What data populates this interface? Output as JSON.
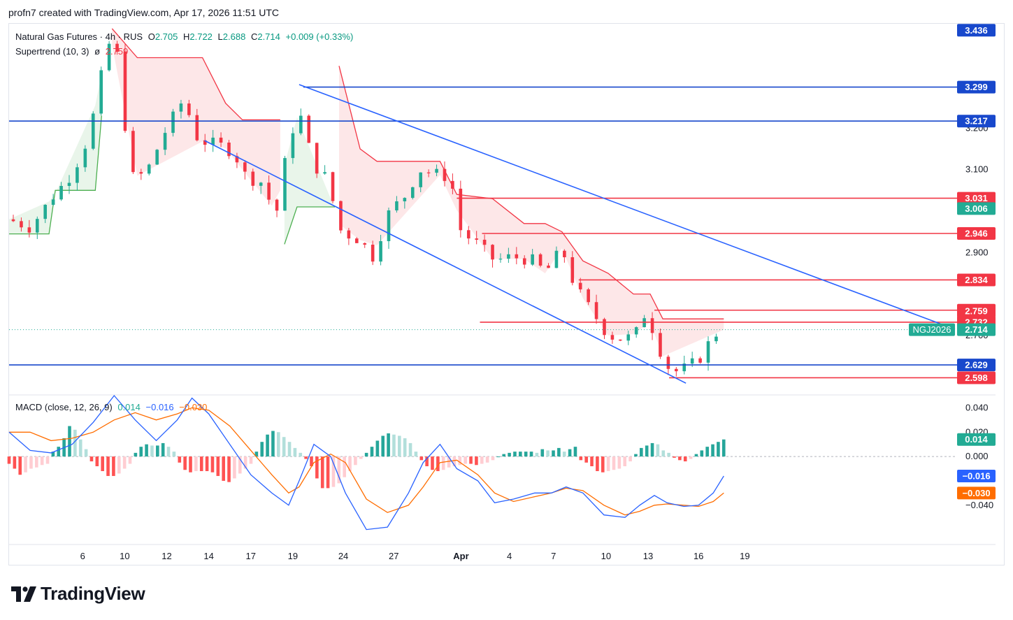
{
  "header": {
    "attribution": "profn7 created with TradingView.com, Apr 17, 2026 11:51 UTC"
  },
  "legend": {
    "symbol": "Natural Gas Futures · 4h · RUS",
    "o_label": "O",
    "o_value": "2.705",
    "h_label": "H",
    "h_value": "2.722",
    "l_label": "L",
    "l_value": "2.688",
    "c_label": "C",
    "c_value": "2.714",
    "change": "+0.009 (+0.33%)",
    "supertrend_label": "Supertrend (10, 3)",
    "supertrend_symbol": "ø",
    "supertrend_value": "2.759",
    "macd_label": "MACD (close, 12, 26, 9)",
    "macd_hist": "0.014",
    "macd_line": "−0.016",
    "macd_signal": "−0.030"
  },
  "logo": {
    "text": "TradingView"
  },
  "chart_data": [
    {
      "type": "candlestick",
      "timeframe": "4h",
      "ylim": [
        2.56,
        3.45
      ],
      "price_ticks": [
        "3.200",
        "3.100",
        "2.900",
        "2.700"
      ],
      "x_ticks": [
        "6",
        "10",
        "12",
        "14",
        "17",
        "19",
        "24",
        "27",
        "Apr",
        "4",
        "7",
        "10",
        "13",
        "16",
        "19"
      ],
      "x_range": [
        -3.5,
        41.5
      ],
      "x_tick_positions": [
        0,
        2,
        4,
        6,
        8,
        10,
        12.4,
        14.8,
        18,
        20.3,
        22.4,
        24.9,
        26.9,
        29.3,
        31.5
      ],
      "horizontal_levels": [
        {
          "value": 3.299,
          "label": "3.299",
          "color": "#1848cc",
          "from_x": 10.5
        },
        {
          "value": 3.217,
          "label": "3.217",
          "color": "#1848cc",
          "from_x": -3.5
        },
        {
          "value": 2.629,
          "label": "2.629",
          "color": "#1848cc",
          "from_x": -3.5
        },
        {
          "value": 3.031,
          "label": "3.031",
          "color": "#f23645",
          "from_x": 17.8
        },
        {
          "value": 2.946,
          "label": "2.946",
          "color": "#f23645",
          "from_x": 19
        },
        {
          "value": 2.834,
          "label": "2.834",
          "color": "#f23645",
          "from_x": 23.6
        },
        {
          "value": 2.761,
          "label": "2.761",
          "color": "#f23645",
          "from_x": 27.2
        },
        {
          "value": 2.732,
          "label": "2.732",
          "color": "#f23645",
          "from_x": 18.9
        },
        {
          "value": 2.598,
          "label": "2.598",
          "color": "#f23645",
          "from_x": 27.9
        }
      ],
      "axis_badges": [
        {
          "value": 3.436,
          "label": "3.436",
          "color": "#1848cc"
        },
        {
          "value": 3.006,
          "label": "3.006",
          "color": "#22ab94"
        },
        {
          "value": 2.759,
          "label": "2.759",
          "color": "#f23645"
        },
        {
          "value": 2.714,
          "label": "2.714",
          "color": "#22ab94"
        }
      ],
      "symbol_tag": "NGJ2026",
      "channel_upper": [
        [
          10.3,
          3.305
        ],
        [
          41.5,
          2.715
        ]
      ],
      "channel_lower": [
        [
          5.8,
          3.17
        ],
        [
          28.7,
          2.585
        ]
      ],
      "close_path": [
        [
          -3.5,
          2.98
        ],
        [
          -2.5,
          2.96
        ],
        [
          -1.5,
          3.03
        ],
        [
          -0.5,
          3.09
        ],
        [
          0.3,
          3.18
        ],
        [
          0.9,
          3.33
        ],
        [
          1.3,
          3.41
        ],
        [
          1.8,
          3.36
        ],
        [
          2.2,
          3.08
        ],
        [
          3.0,
          3.09
        ],
        [
          4.0,
          3.2
        ],
        [
          4.8,
          3.27
        ],
        [
          5.5,
          3.17
        ],
        [
          6.5,
          3.16
        ],
        [
          7.2,
          3.14
        ],
        [
          7.8,
          3.08
        ],
        [
          8.5,
          3.07
        ],
        [
          9.2,
          2.99
        ],
        [
          9.8,
          3.17
        ],
        [
          10.3,
          3.24
        ],
        [
          11.0,
          3.11
        ],
        [
          11.6,
          3.08
        ],
        [
          12.3,
          2.95
        ],
        [
          13.2,
          2.93
        ],
        [
          13.8,
          2.89
        ],
        [
          14.6,
          3.0
        ],
        [
          15.4,
          3.04
        ],
        [
          16.0,
          3.1
        ],
        [
          16.8,
          3.09
        ],
        [
          17.5,
          3.08
        ],
        [
          18.0,
          2.95
        ],
        [
          18.8,
          2.92
        ],
        [
          19.6,
          2.88
        ],
        [
          20.4,
          2.89
        ],
        [
          21.5,
          2.88
        ],
        [
          22.0,
          2.85
        ],
        [
          22.8,
          2.91
        ],
        [
          23.4,
          2.82
        ],
        [
          24.2,
          2.76
        ],
        [
          25.0,
          2.7
        ],
        [
          25.8,
          2.69
        ],
        [
          26.4,
          2.71
        ],
        [
          26.8,
          2.76
        ],
        [
          27.5,
          2.66
        ],
        [
          28.0,
          2.61
        ],
        [
          28.6,
          2.62
        ],
        [
          29.3,
          2.64
        ],
        [
          30.0,
          2.7
        ],
        [
          30.5,
          2.714
        ]
      ],
      "supertrend": [
        {
          "trend": "up",
          "color": "#4caf50",
          "points": [
            [
              -3.5,
              2.945
            ],
            [
              -1.6,
              2.945
            ],
            [
              -1.3,
              3.05
            ],
            [
              0.6,
              3.05
            ],
            [
              0.9,
              3.23
            ]
          ]
        },
        {
          "trend": "down",
          "color": "#f23645",
          "points": [
            [
              1.4,
              3.44
            ],
            [
              2.6,
              3.37
            ],
            [
              5.7,
              3.37
            ],
            [
              6.8,
              3.26
            ],
            [
              7.6,
              3.22
            ],
            [
              9.0,
              3.22
            ],
            [
              9.4,
              3.22
            ]
          ]
        },
        {
          "trend": "up",
          "color": "#4caf50",
          "points": [
            [
              9.6,
              2.92
            ],
            [
              10.2,
              3.01
            ],
            [
              12.0,
              3.01
            ]
          ]
        },
        {
          "trend": "down",
          "color": "#f23645",
          "points": [
            [
              12.2,
              3.35
            ],
            [
              13.2,
              3.15
            ],
            [
              14.0,
              3.12
            ],
            [
              17.0,
              3.12
            ],
            [
              17.8,
              3.04
            ],
            [
              19.5,
              3.03
            ],
            [
              21.0,
              2.97
            ],
            [
              22.0,
              2.97
            ],
            [
              22.8,
              2.95
            ],
            [
              23.8,
              2.88
            ],
            [
              25.0,
              2.85
            ],
            [
              26.2,
              2.8
            ],
            [
              27.0,
              2.8
            ],
            [
              27.6,
              2.74
            ],
            [
              30.5,
              2.74
            ]
          ]
        }
      ],
      "series": [
        {
          "name": "Supertrend (10, 3)",
          "values": [
            2.759
          ]
        }
      ]
    },
    {
      "type": "macd",
      "title": "MACD (close, 12, 26, 9)",
      "ylim": [
        -0.07,
        0.05
      ],
      "ticks": [
        "0.040",
        "0.020",
        "0.000",
        "−0.040"
      ],
      "axis_badges": [
        {
          "value": 0.014,
          "label": "0.014",
          "color": "#22ab94"
        },
        {
          "value": -0.016,
          "label": "−0.016",
          "color": "#2962ff"
        },
        {
          "value": -0.03,
          "label": "−0.030",
          "color": "#ff6d00"
        }
      ],
      "macd_line": [
        [
          -3.5,
          0.02
        ],
        [
          -2.5,
          0.005
        ],
        [
          -1.5,
          0.003
        ],
        [
          -0.5,
          0.01
        ],
        [
          0.5,
          0.028
        ],
        [
          1.5,
          0.05
        ],
        [
          2.5,
          0.03
        ],
        [
          3.5,
          0.013
        ],
        [
          4.5,
          0.03
        ],
        [
          5.2,
          0.048
        ],
        [
          6.0,
          0.035
        ],
        [
          7.0,
          0.01
        ],
        [
          8.0,
          -0.015
        ],
        [
          9.0,
          -0.03
        ],
        [
          9.8,
          -0.04
        ],
        [
          10.3,
          -0.02
        ],
        [
          11.0,
          0.01
        ],
        [
          11.8,
          0.0
        ],
        [
          12.5,
          -0.03
        ],
        [
          13.5,
          -0.06
        ],
        [
          14.5,
          -0.058
        ],
        [
          15.5,
          -0.03
        ],
        [
          16.2,
          -0.005
        ],
        [
          17.0,
          0.01
        ],
        [
          17.8,
          -0.01
        ],
        [
          18.8,
          -0.02
        ],
        [
          19.6,
          -0.038
        ],
        [
          20.5,
          -0.035
        ],
        [
          21.5,
          -0.03
        ],
        [
          22.3,
          -0.03
        ],
        [
          23.0,
          -0.025
        ],
        [
          23.8,
          -0.03
        ],
        [
          24.8,
          -0.048
        ],
        [
          25.8,
          -0.05
        ],
        [
          26.5,
          -0.04
        ],
        [
          27.2,
          -0.032
        ],
        [
          27.8,
          -0.038
        ],
        [
          28.6,
          -0.041
        ],
        [
          29.3,
          -0.04
        ],
        [
          30.0,
          -0.03
        ],
        [
          30.5,
          -0.016
        ]
      ],
      "signal_line": [
        [
          -3.5,
          0.02
        ],
        [
          -2.5,
          0.02
        ],
        [
          -1.5,
          0.013
        ],
        [
          -0.5,
          0.015
        ],
        [
          0.5,
          0.02
        ],
        [
          1.5,
          0.03
        ],
        [
          2.5,
          0.036
        ],
        [
          3.5,
          0.03
        ],
        [
          4.5,
          0.035
        ],
        [
          5.2,
          0.04
        ],
        [
          6.0,
          0.038
        ],
        [
          7.0,
          0.025
        ],
        [
          8.0,
          0.005
        ],
        [
          9.0,
          -0.015
        ],
        [
          9.8,
          -0.03
        ],
        [
          10.3,
          -0.025
        ],
        [
          11.0,
          -0.005
        ],
        [
          11.8,
          0.002
        ],
        [
          12.5,
          -0.005
        ],
        [
          13.5,
          -0.035
        ],
        [
          14.5,
          -0.046
        ],
        [
          15.5,
          -0.04
        ],
        [
          16.2,
          -0.025
        ],
        [
          17.0,
          -0.005
        ],
        [
          17.8,
          -0.003
        ],
        [
          18.8,
          -0.015
        ],
        [
          19.6,
          -0.03
        ],
        [
          20.5,
          -0.037
        ],
        [
          21.5,
          -0.033
        ],
        [
          22.3,
          -0.03
        ],
        [
          23.0,
          -0.026
        ],
        [
          23.8,
          -0.028
        ],
        [
          24.8,
          -0.04
        ],
        [
          25.8,
          -0.048
        ],
        [
          26.5,
          -0.045
        ],
        [
          27.2,
          -0.04
        ],
        [
          27.8,
          -0.039
        ],
        [
          28.6,
          -0.04
        ],
        [
          29.3,
          -0.041
        ],
        [
          30.0,
          -0.037
        ],
        [
          30.5,
          -0.03
        ]
      ],
      "histogram": [
        -0.006,
        -0.01,
        -0.015,
        -0.013,
        -0.01,
        -0.009,
        -0.007,
        -0.006,
        0.004,
        0.008,
        0.015,
        0.025,
        0.022,
        0.014,
        0.006,
        -0.004,
        -0.008,
        -0.012,
        -0.016,
        -0.016,
        -0.014,
        -0.01,
        -0.006,
        0.003,
        0.008,
        0.01,
        0.009,
        0.009,
        0.011,
        0.008,
        0.004,
        -0.005,
        -0.011,
        -0.013,
        -0.012,
        -0.012,
        -0.012,
        -0.013,
        -0.016,
        -0.02,
        -0.021,
        -0.018,
        -0.014,
        -0.01,
        -0.006,
        0.004,
        0.012,
        0.018,
        0.021,
        0.02,
        0.016,
        0.012,
        0.007,
        0.003,
        -0.002,
        -0.008,
        -0.018,
        -0.026,
        -0.026,
        -0.025,
        -0.022,
        -0.017,
        -0.012,
        -0.007,
        -0.002,
        0.003,
        0.008,
        0.013,
        0.017,
        0.019,
        0.018,
        0.017,
        0.015,
        0.011,
        0.004,
        -0.003,
        -0.008,
        -0.011,
        -0.012,
        -0.011,
        -0.009,
        -0.008,
        -0.007,
        -0.006,
        -0.006,
        -0.007,
        -0.006,
        -0.005,
        -0.003,
        0.0,
        0.002,
        0.003,
        0.004,
        0.004,
        0.004,
        0.004,
        0.003,
        0.006,
        0.005,
        0.005,
        0.007,
        0.004,
        0.006,
        0.008,
        -0.003,
        -0.005,
        -0.008,
        -0.012,
        -0.013,
        -0.012,
        -0.011,
        -0.01,
        -0.008,
        -0.004,
        0.002,
        0.007,
        0.009,
        0.011,
        0.01,
        0.005,
        0.003,
        -0.001,
        -0.003,
        -0.004,
        -0.002,
        0.002,
        0.005,
        0.008,
        0.01,
        0.012,
        0.014
      ]
    }
  ],
  "colors": {
    "up": "#22ab94",
    "down": "#f23645",
    "blue_line": "#1848cc",
    "channel": "#2962ff",
    "macd": "#2962ff",
    "signal": "#ff6d00",
    "grid": "#f0f3fa",
    "axis_text": "#131722"
  }
}
